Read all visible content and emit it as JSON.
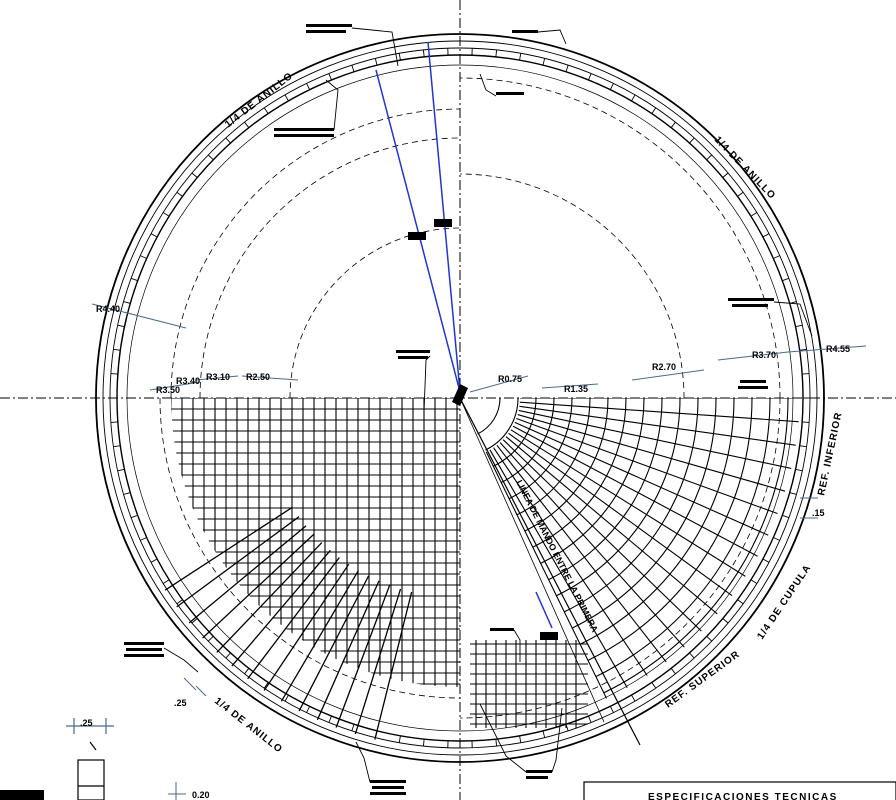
{
  "colors": {
    "ink": "#000000",
    "blue": "#1f36d6",
    "steel": "#4a6a8a"
  },
  "labels": {
    "anillo_top": "1/4 DE ANILLO",
    "anillo_right": "1/4 DE ANILLO",
    "anillo_bottom": "1/4 DE ANILLO",
    "cupula": "1/4 DE CUPULA",
    "ref_inferior": "REF. INFERIOR",
    "ref_superior": "REF. SUPERIOR",
    "diagonal": "LINEA DE MANDO ENTRE LA PRIMERA",
    "dim_25": ".25",
    "dim_15": ".15",
    "dim_20": "0.20",
    "dim_bottom_25": ".25",
    "title_box": "ESPECIFICACIONES TECNICAS"
  },
  "radii": [
    {
      "text": "R4.40"
    },
    {
      "text": "R3.40"
    },
    {
      "text": "R3.50"
    },
    {
      "text": "R3.10"
    },
    {
      "text": "R2.50"
    },
    {
      "text": "R0.75"
    },
    {
      "text": "R1.35"
    },
    {
      "text": "R2.70"
    },
    {
      "text": "R3.70"
    },
    {
      "text": "R4.55"
    }
  ]
}
